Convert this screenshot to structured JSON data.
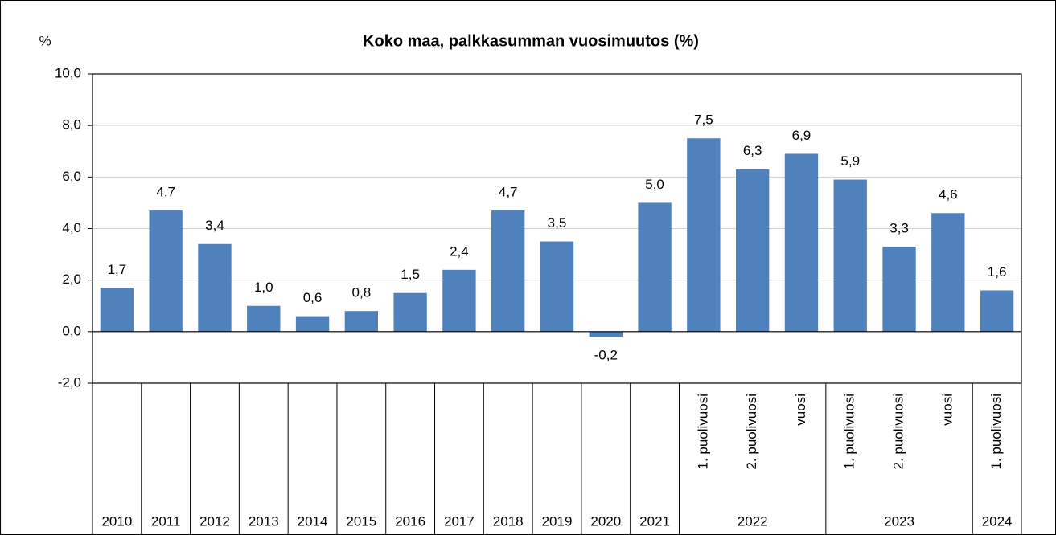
{
  "chart_data": {
    "type": "bar",
    "title": "Koko maa, palkkasumman vuosimuutos (%)",
    "y_label": "%",
    "categories": [
      [
        "2010",
        null
      ],
      [
        "2011",
        null
      ],
      [
        "2012",
        null
      ],
      [
        "2013",
        null
      ],
      [
        "2014",
        null
      ],
      [
        "2015",
        null
      ],
      [
        "2016",
        null
      ],
      [
        "2017",
        null
      ],
      [
        "2018",
        null
      ],
      [
        "2019",
        null
      ],
      [
        "2020",
        null
      ],
      [
        "2021",
        null
      ],
      [
        "2022",
        "1. puolivuosi"
      ],
      [
        "2022",
        "2. puolivuosi"
      ],
      [
        "2022",
        "vuosi"
      ],
      [
        "2023",
        "1. puolivuosi"
      ],
      [
        "2023",
        "2. puolivuosi"
      ],
      [
        "2023",
        "vuosi"
      ],
      [
        "2024",
        "1. puolivuosi"
      ]
    ],
    "values": [
      1.7,
      4.7,
      3.4,
      1.0,
      0.6,
      0.8,
      1.5,
      2.4,
      4.7,
      3.5,
      -0.2,
      5.0,
      7.5,
      6.3,
      6.9,
      5.9,
      3.3,
      4.6,
      1.6
    ],
    "value_labels": [
      "1,7",
      "4,7",
      "3,4",
      "1,0",
      "0,6",
      "0,8",
      "1,5",
      "2,4",
      "4,7",
      "3,5",
      "-0,2",
      "5,0",
      "7,5",
      "6,3",
      "6,9",
      "5,9",
      "3,3",
      "4,6",
      "1,6"
    ],
    "color": "#4f81bd",
    "ylim": [
      -2,
      10
    ],
    "yticks": [
      {
        "value": -2,
        "label": "-2,0"
      },
      {
        "value": 0,
        "label": "0,0"
      },
      {
        "value": 2,
        "label": "2,0"
      },
      {
        "value": 4,
        "label": "4,0"
      },
      {
        "value": 6,
        "label": "6,0"
      },
      {
        "value": 8,
        "label": "8,0"
      },
      {
        "value": 10,
        "label": "10,0"
      }
    ],
    "grid": true
  }
}
